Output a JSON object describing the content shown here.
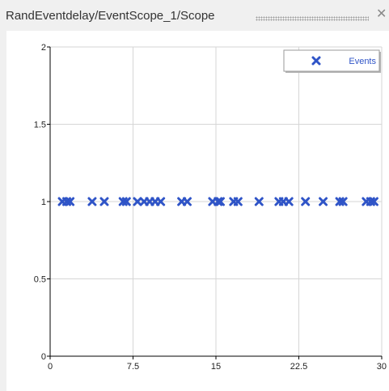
{
  "window": {
    "title": "RandEventdelay/EventScope_1/Scope",
    "close_icon": "close-icon"
  },
  "chart_data": {
    "type": "scatter",
    "title": "",
    "xlabel": "",
    "ylabel": "",
    "xlim": [
      0,
      30
    ],
    "ylim": [
      0,
      2
    ],
    "x_ticks": [
      "0",
      "7.5",
      "15",
      "22.5",
      "30"
    ],
    "y_ticks": [
      "0",
      "0.5",
      "1",
      "1.5",
      "2"
    ],
    "grid": true,
    "legend_position": "top-right",
    "marker": "x",
    "series_color": "#2f54c7",
    "series": [
      {
        "name": "Events",
        "x": [
          1.1,
          1.5,
          1.8,
          3.8,
          4.9,
          6.6,
          6.9,
          7.9,
          8.5,
          9.0,
          9.5,
          10.0,
          11.9,
          12.4,
          14.7,
          15.2,
          15.4,
          16.6,
          17.0,
          18.9,
          20.7,
          21.1,
          21.6,
          23.1,
          24.7,
          26.2,
          26.5,
          28.6,
          29.0,
          29.3
        ],
        "y": [
          1,
          1,
          1,
          1,
          1,
          1,
          1,
          1,
          1,
          1,
          1,
          1,
          1,
          1,
          1,
          1,
          1,
          1,
          1,
          1,
          1,
          1,
          1,
          1,
          1,
          1,
          1,
          1,
          1,
          1
        ]
      }
    ]
  }
}
